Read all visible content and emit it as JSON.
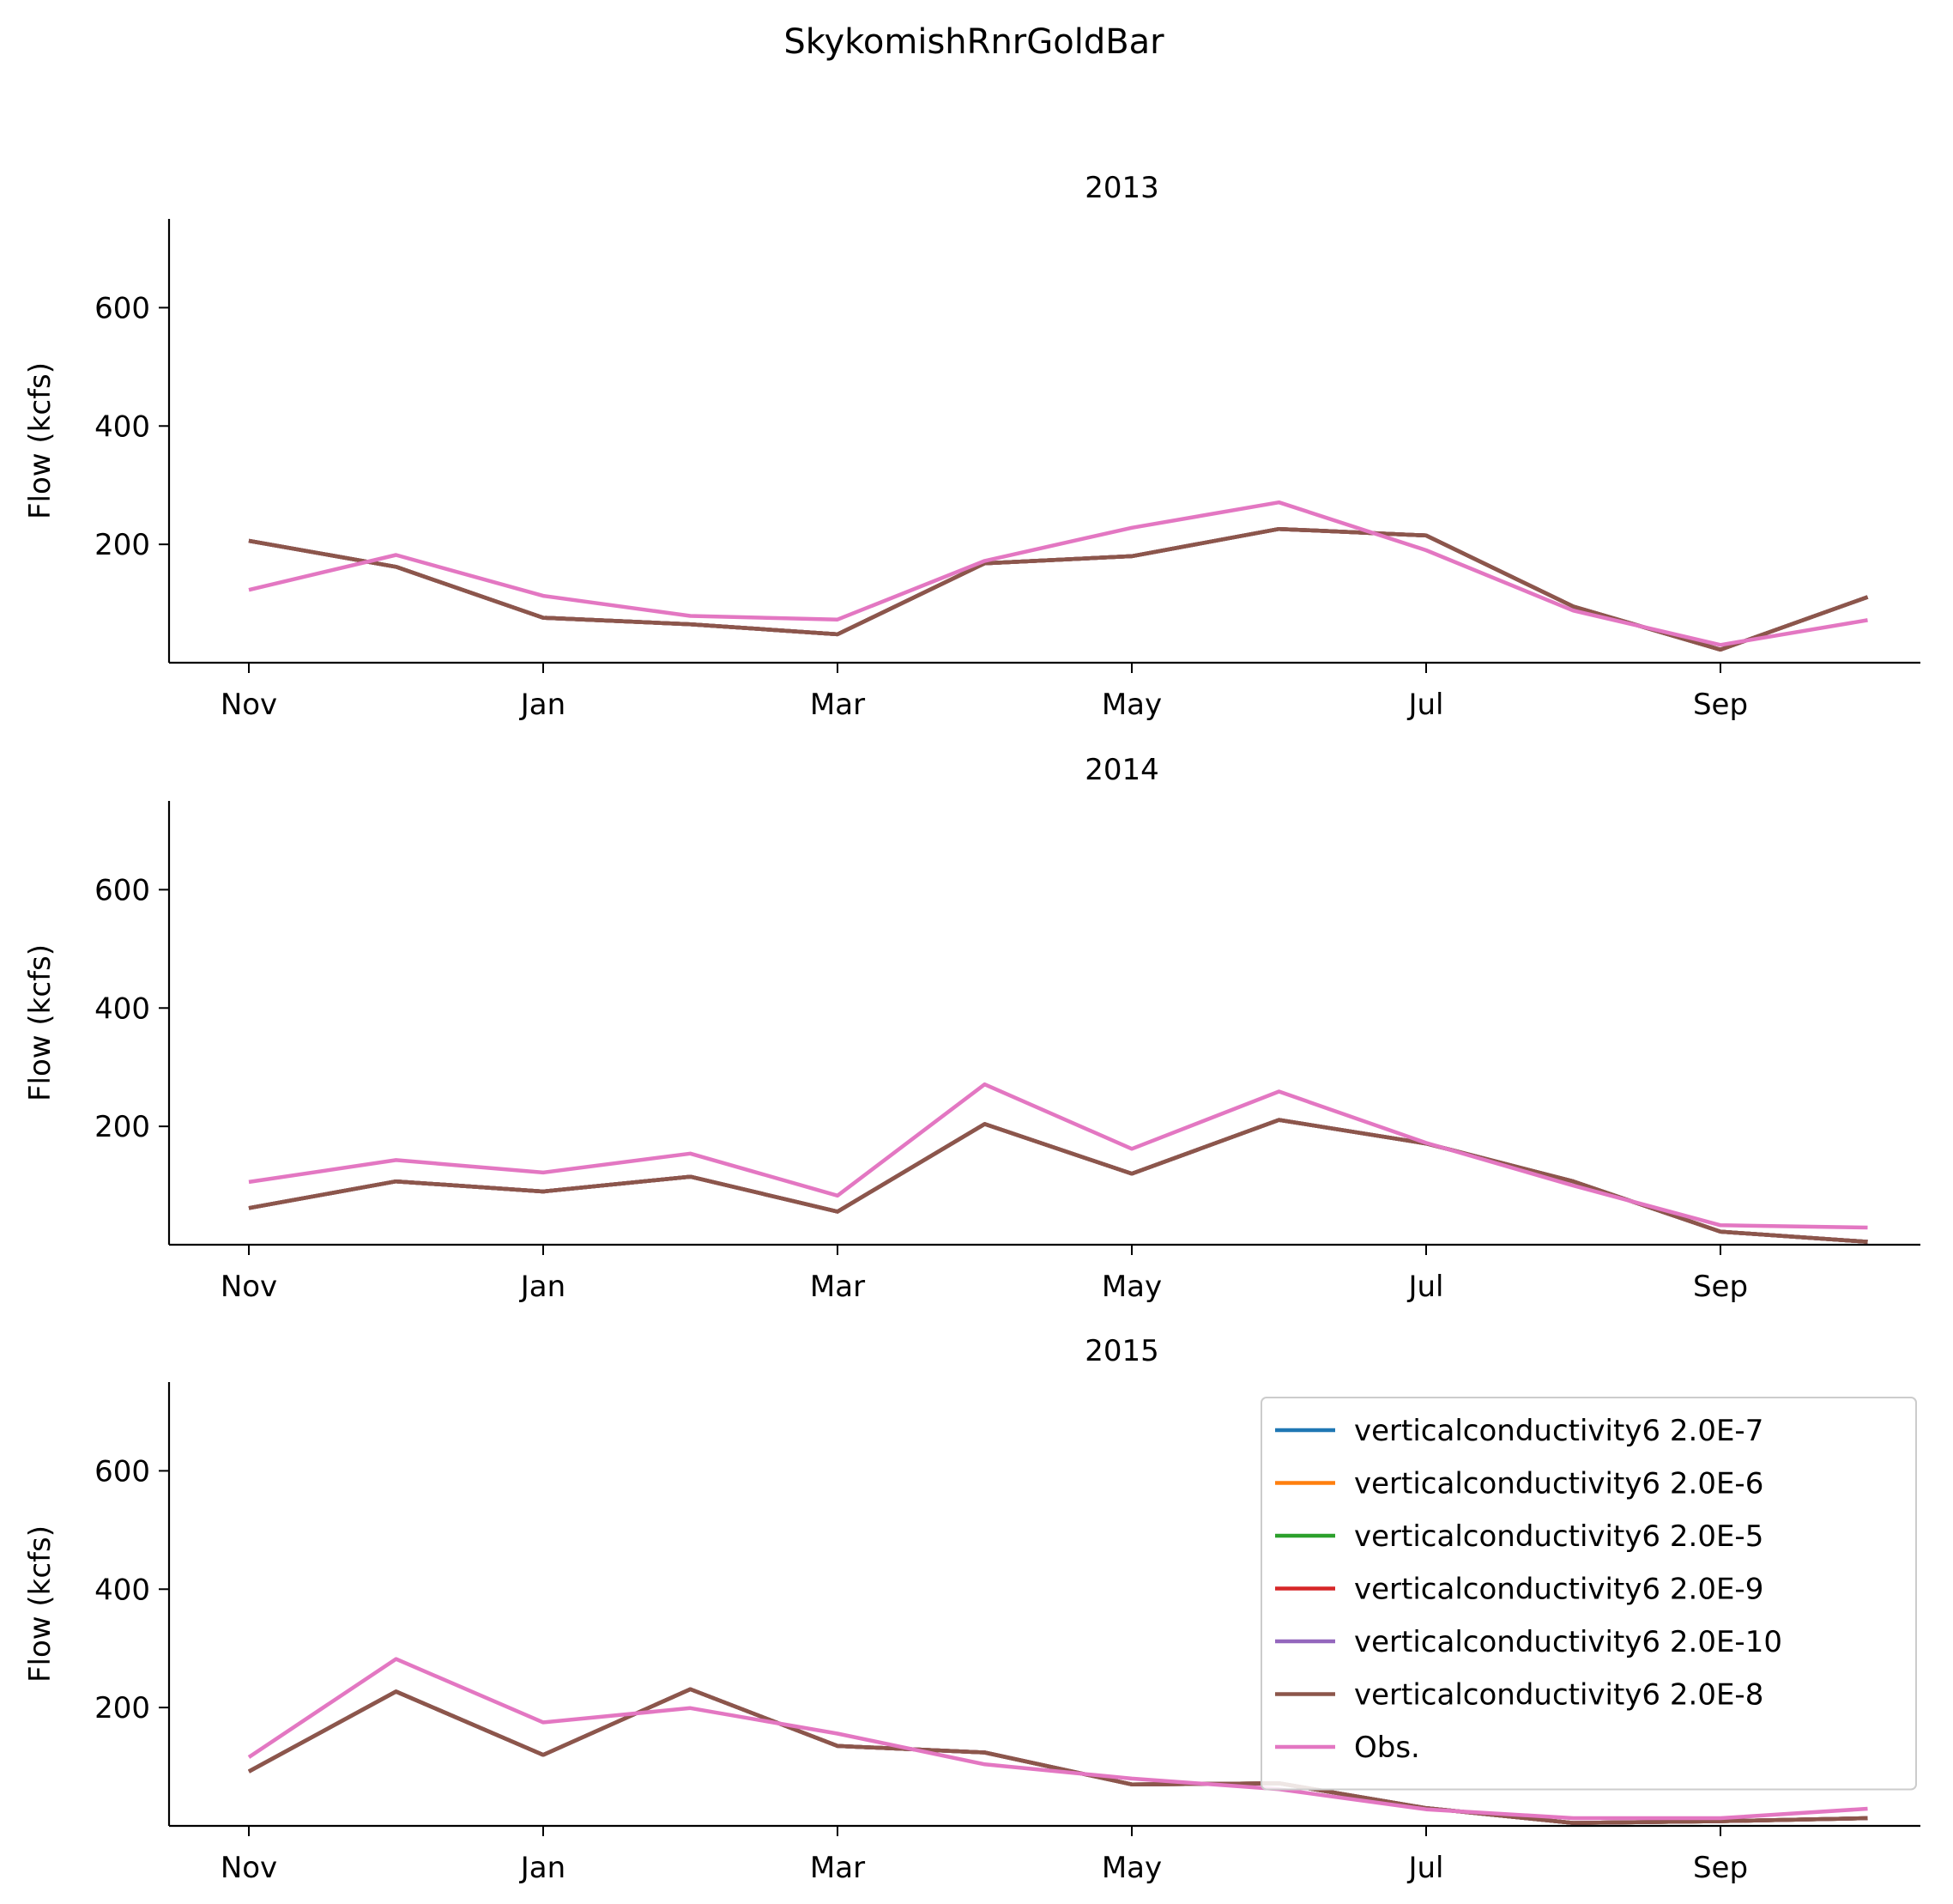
{
  "suptitle": "SkykomishRnrGoldBar",
  "chart_data": [
    {
      "type": "line",
      "title": "2013",
      "ylabel": "Flow (kcfs)",
      "xlabel": "",
      "x": [
        "Nov",
        "Dec",
        "Jan",
        "Feb",
        "Mar",
        "Apr",
        "May",
        "Jun",
        "Jul",
        "Aug",
        "Sep",
        "Oct"
      ],
      "xticks": [
        "Nov",
        "Jan",
        "Mar",
        "May",
        "Jul",
        "Sep"
      ],
      "yticks": [
        200,
        400,
        600
      ],
      "ylim": [
        0,
        750
      ],
      "grid": false,
      "series": [
        {
          "name": "verticalconductivity6 2.0E-7",
          "color": "#1f77b4",
          "values": [
            206,
            162,
            76,
            65,
            48,
            168,
            180,
            226,
            215,
            95,
            22,
            111
          ]
        },
        {
          "name": "verticalconductivity6 2.0E-6",
          "color": "#ff7f0e",
          "values": [
            206,
            162,
            76,
            65,
            48,
            168,
            180,
            226,
            215,
            95,
            22,
            111
          ]
        },
        {
          "name": "verticalconductivity6 2.0E-5",
          "color": "#2ca02c",
          "values": [
            206,
            162,
            76,
            65,
            48,
            168,
            180,
            226,
            215,
            95,
            22,
            111
          ]
        },
        {
          "name": "verticalconductivity6 2.0E-9",
          "color": "#d62728",
          "values": [
            206,
            162,
            76,
            65,
            48,
            168,
            180,
            226,
            215,
            95,
            22,
            111
          ]
        },
        {
          "name": "verticalconductivity6 2.0E-10",
          "color": "#9467bd",
          "values": [
            206,
            162,
            76,
            65,
            48,
            168,
            180,
            226,
            215,
            95,
            22,
            111
          ]
        },
        {
          "name": "verticalconductivity6 2.0E-8",
          "color": "#8c564b",
          "values": [
            206,
            162,
            76,
            65,
            48,
            168,
            180,
            226,
            215,
            95,
            22,
            111
          ]
        },
        {
          "name": "Obs.",
          "color": "#e377c2",
          "values": [
            123,
            182,
            113,
            79,
            73,
            172,
            228,
            271,
            190,
            88,
            30,
            72
          ]
        }
      ]
    },
    {
      "type": "line",
      "title": "2014",
      "ylabel": "Flow (kcfs)",
      "xlabel": "",
      "x": [
        "Nov",
        "Dec",
        "Jan",
        "Feb",
        "Mar",
        "Apr",
        "May",
        "Jun",
        "Jul",
        "Aug",
        "Sep",
        "Oct"
      ],
      "xticks": [
        "Nov",
        "Jan",
        "Mar",
        "May",
        "Jul",
        "Sep"
      ],
      "yticks": [
        200,
        400,
        600
      ],
      "ylim": [
        0,
        750
      ],
      "grid": false,
      "series": [
        {
          "name": "verticalconductivity6 2.0E-7",
          "color": "#1f77b4",
          "values": [
            62,
            107,
            90,
            115,
            56,
            204,
            120,
            211,
            171,
            107,
            22,
            5
          ]
        },
        {
          "name": "verticalconductivity6 2.0E-6",
          "color": "#ff7f0e",
          "values": [
            62,
            107,
            90,
            115,
            56,
            204,
            120,
            211,
            171,
            107,
            22,
            5
          ]
        },
        {
          "name": "verticalconductivity6 2.0E-5",
          "color": "#2ca02c",
          "values": [
            62,
            107,
            90,
            115,
            56,
            204,
            120,
            211,
            171,
            107,
            22,
            5
          ]
        },
        {
          "name": "verticalconductivity6 2.0E-9",
          "color": "#d62728",
          "values": [
            62,
            107,
            90,
            115,
            56,
            204,
            120,
            211,
            171,
            107,
            22,
            5
          ]
        },
        {
          "name": "verticalconductivity6 2.0E-10",
          "color": "#9467bd",
          "values": [
            62,
            107,
            90,
            115,
            56,
            204,
            120,
            211,
            171,
            107,
            22,
            5
          ]
        },
        {
          "name": "verticalconductivity6 2.0E-8",
          "color": "#8c564b",
          "values": [
            62,
            107,
            90,
            115,
            56,
            204,
            120,
            211,
            171,
            107,
            22,
            5
          ]
        },
        {
          "name": "Obs.",
          "color": "#e377c2",
          "values": [
            106,
            143,
            122,
            154,
            83,
            271,
            162,
            259,
            172,
            100,
            33,
            29
          ]
        }
      ]
    },
    {
      "type": "line",
      "title": "2015",
      "ylabel": "Flow (kcfs)",
      "xlabel": "",
      "x": [
        "Nov",
        "Dec",
        "Jan",
        "Feb",
        "Mar",
        "Apr",
        "May",
        "Jun",
        "Jul",
        "Aug",
        "Sep",
        "Oct"
      ],
      "xticks": [
        "Nov",
        "Jan",
        "Mar",
        "May",
        "Jul",
        "Sep"
      ],
      "yticks": [
        200,
        400,
        600
      ],
      "ylim": [
        0,
        750
      ],
      "grid": false,
      "legend": "top-right",
      "series": [
        {
          "name": "verticalconductivity6 2.0E-7",
          "color": "#1f77b4",
          "values": [
            92,
            227,
            120,
            231,
            135,
            124,
            70,
            72,
            30,
            5,
            8,
            13
          ]
        },
        {
          "name": "verticalconductivity6 2.0E-6",
          "color": "#ff7f0e",
          "values": [
            92,
            227,
            120,
            231,
            135,
            124,
            70,
            72,
            30,
            5,
            8,
            13
          ]
        },
        {
          "name": "verticalconductivity6 2.0E-5",
          "color": "#2ca02c",
          "values": [
            92,
            227,
            120,
            231,
            135,
            124,
            70,
            72,
            30,
            5,
            8,
            13
          ]
        },
        {
          "name": "verticalconductivity6 2.0E-9",
          "color": "#d62728",
          "values": [
            92,
            227,
            120,
            231,
            135,
            124,
            70,
            72,
            30,
            5,
            8,
            13
          ]
        },
        {
          "name": "verticalconductivity6 2.0E-10",
          "color": "#9467bd",
          "values": [
            92,
            227,
            120,
            231,
            135,
            124,
            70,
            72,
            30,
            5,
            8,
            13
          ]
        },
        {
          "name": "verticalconductivity6 2.0E-8",
          "color": "#8c564b",
          "values": [
            92,
            227,
            120,
            231,
            135,
            124,
            70,
            72,
            30,
            5,
            8,
            13
          ]
        },
        {
          "name": "Obs.",
          "color": "#e377c2",
          "values": [
            116,
            282,
            175,
            199,
            156,
            104,
            80,
            62,
            28,
            13,
            13,
            29
          ]
        }
      ]
    }
  ]
}
